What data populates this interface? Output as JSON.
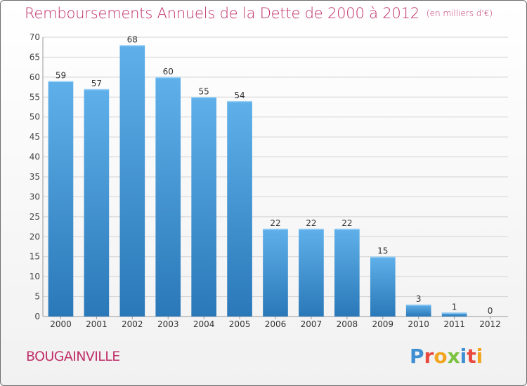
{
  "title": "Remboursements Annuels de la Dette de 2000 à 2012",
  "unit_note": "(en milliers d'€)",
  "commune": "BOUGAINVILLE",
  "logo_text": "Proxiti",
  "colors": {
    "title": "#c0306a",
    "bar_top": "#5fb0ea",
    "bar_bottom": "#2a78b8",
    "grid": "#d3d3d3"
  },
  "chart_data": {
    "type": "bar",
    "title": "Remboursements Annuels de la Dette de 2000 à 2012",
    "categories": [
      "2000",
      "2001",
      "2002",
      "2003",
      "2004",
      "2005",
      "2006",
      "2007",
      "2008",
      "2009",
      "2010",
      "2011",
      "2012"
    ],
    "values": [
      59,
      57,
      68,
      60,
      55,
      54,
      22,
      22,
      22,
      15,
      3,
      1,
      0
    ],
    "ylim": [
      0,
      70
    ],
    "yticks": [
      0,
      5,
      10,
      15,
      20,
      25,
      30,
      35,
      40,
      45,
      50,
      55,
      60,
      65,
      70
    ],
    "grid": true,
    "data_labels": true
  }
}
